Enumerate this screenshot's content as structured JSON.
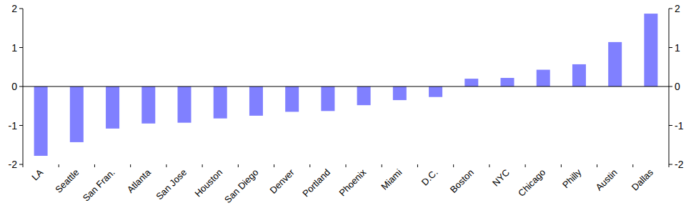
{
  "chart_data": {
    "type": "bar",
    "categories": [
      "LA",
      "Seattle",
      "San Fran.",
      "Atlanta",
      "San Jose",
      "Houston",
      "San Diego",
      "Denver",
      "Portland",
      "Phoenix",
      "Miami",
      "D.C.",
      "Boston",
      "NYC",
      "Chicago",
      "Philly",
      "Austin",
      "Dallas"
    ],
    "values": [
      -1.78,
      -1.43,
      -1.08,
      -0.95,
      -0.93,
      -0.82,
      -0.75,
      -0.65,
      -0.63,
      -0.48,
      -0.35,
      -0.27,
      0.2,
      0.22,
      0.43,
      0.57,
      1.14,
      1.87
    ],
    "color": "#8080ff",
    "ylim": [
      -2,
      2
    ],
    "yticks": [
      -2,
      -1,
      0,
      1,
      2
    ],
    "grid": false
  }
}
